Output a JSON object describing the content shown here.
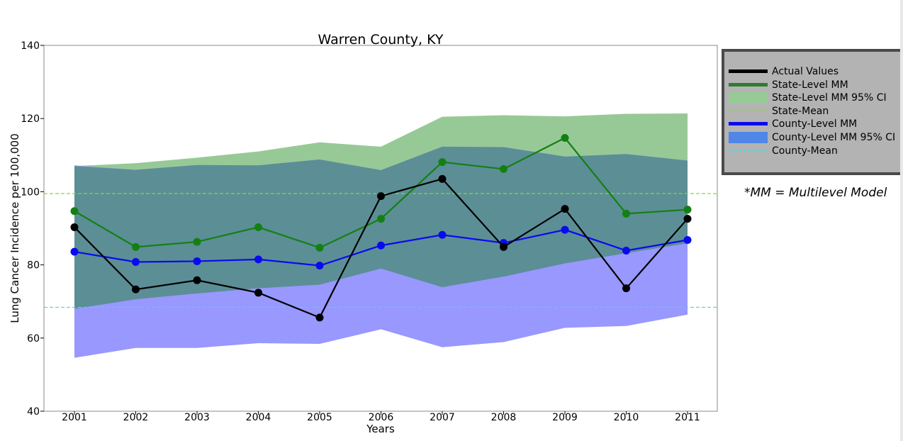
{
  "chart_data": {
    "type": "line",
    "title": "Warren County, KY",
    "xlabel": "Years",
    "ylabel": "Lung Cancer Incidence per 100,000",
    "ylim": [
      40,
      140
    ],
    "yticks": [
      40,
      60,
      80,
      100,
      120,
      140
    ],
    "categories": [
      "2001",
      "2002",
      "2003",
      "2004",
      "2005",
      "2006",
      "2007",
      "2008",
      "2009",
      "2010",
      "2011"
    ],
    "series": [
      {
        "name": "Actual Values",
        "color": "#000000",
        "values": [
          90.3,
          73.3,
          75.8,
          72.4,
          65.6,
          98.8,
          103.5,
          84.9,
          95.3,
          73.6,
          92.6
        ]
      },
      {
        "name": "State-Level MM",
        "color": "#138013",
        "values": [
          94.7,
          84.9,
          86.3,
          90.3,
          84.7,
          92.6,
          108.1,
          106.2,
          114.7,
          94.0,
          95.1
        ]
      },
      {
        "name": "County-Level MM",
        "color": "#0a0af0",
        "values": [
          83.6,
          80.8,
          81.0,
          81.5,
          79.8,
          85.3,
          88.2,
          86.0,
          89.6,
          83.9,
          86.8
        ]
      }
    ],
    "bands": [
      {
        "name": "State-Level MM 95% CI",
        "color": "#97c997",
        "upper": [
          107.0,
          107.8,
          109.3,
          111.0,
          113.5,
          112.3,
          120.5,
          120.9,
          120.6,
          121.3,
          121.4
        ],
        "lower": [
          68.0,
          70.6,
          72.2,
          73.6,
          74.6,
          79.0,
          73.9,
          76.8,
          80.4,
          83.2,
          85.9
        ]
      },
      {
        "name": "County-Level MM 95% CI",
        "color": "#9898ff",
        "upper": [
          107.2,
          106.0,
          107.3,
          107.2,
          108.8,
          105.9,
          112.3,
          112.2,
          109.6,
          110.3,
          108.5
        ],
        "lower": [
          54.6,
          57.3,
          57.3,
          58.6,
          58.4,
          62.4,
          57.5,
          58.9,
          62.8,
          63.3,
          66.4
        ]
      }
    ],
    "overlap_color": "#5c8e96",
    "reference_lines": [
      {
        "name": "State-Mean",
        "value": 99.5,
        "color": "#7fe02a"
      },
      {
        "name": "County-Mean",
        "value": 68.4,
        "color": "#36e0e0"
      }
    ],
    "legend": {
      "placement": "outside-right-top"
    }
  },
  "legend": {
    "items": [
      {
        "label": "Actual Values",
        "kind": "line-thick",
        "color": "#000000"
      },
      {
        "label": "State-Level MM",
        "kind": "line-thick",
        "color": "#2e7d2e"
      },
      {
        "label": "State-Level MM 95% CI",
        "kind": "patch",
        "color": "#97c997"
      },
      {
        "label": "State-Mean",
        "kind": "dashed",
        "color": "#7fe02a"
      },
      {
        "label": "County-Level MM",
        "kind": "line-thick",
        "color": "#0a0af0"
      },
      {
        "label": "County-Level MM 95% CI",
        "kind": "patch",
        "color": "#4f86e8"
      },
      {
        "label": "County-Mean",
        "kind": "dashed",
        "color": "#36e0e0"
      }
    ]
  },
  "footnote": "*MM = Multilevel Model"
}
